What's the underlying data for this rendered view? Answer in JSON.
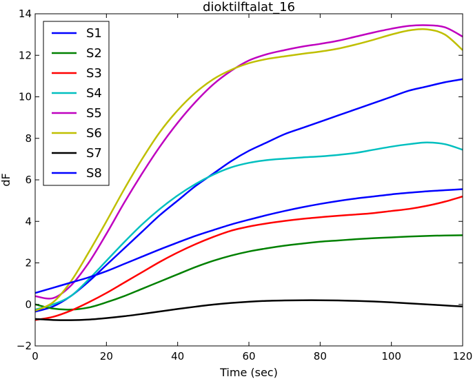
{
  "chart_data": {
    "type": "line",
    "title": "dioktilftalat_16",
    "xlabel": "Time (sec)",
    "ylabel": "dF",
    "xlim": [
      0,
      120
    ],
    "ylim": [
      -2,
      14
    ],
    "xticks": [
      0,
      20,
      40,
      60,
      80,
      100,
      120
    ],
    "xtick_labels": [
      "0",
      "20",
      "40",
      "60",
      "80",
      "100",
      "120"
    ],
    "yticks": [
      -2,
      0,
      2,
      4,
      6,
      8,
      10,
      12,
      14
    ],
    "ytick_labels": [
      "−2",
      "0",
      "2",
      "4",
      "6",
      "8",
      "10",
      "12",
      "14"
    ],
    "grid": false,
    "legend_position": "upper-left",
    "x": [
      0,
      5,
      10,
      15,
      20,
      25,
      30,
      35,
      40,
      45,
      50,
      55,
      60,
      65,
      70,
      75,
      80,
      85,
      90,
      95,
      100,
      105,
      110,
      115,
      120
    ],
    "series": [
      {
        "name": "S1",
        "color": "#0000ff",
        "values": [
          -0.35,
          -0.1,
          0.4,
          1.1,
          1.9,
          2.7,
          3.5,
          4.3,
          5.0,
          5.7,
          6.3,
          6.9,
          7.4,
          7.8,
          8.2,
          8.5,
          8.8,
          9.1,
          9.4,
          9.7,
          10.0,
          10.3,
          10.5,
          10.7,
          10.85
        ]
      },
      {
        "name": "S2",
        "color": "#008000",
        "values": [
          0.0,
          -0.2,
          -0.25,
          -0.15,
          0.1,
          0.4,
          0.75,
          1.1,
          1.45,
          1.8,
          2.1,
          2.35,
          2.55,
          2.7,
          2.83,
          2.93,
          3.02,
          3.08,
          3.14,
          3.19,
          3.23,
          3.27,
          3.3,
          3.32,
          3.33
        ]
      },
      {
        "name": "S3",
        "color": "#ff0000",
        "values": [
          -0.75,
          -0.6,
          -0.3,
          0.1,
          0.55,
          1.05,
          1.55,
          2.05,
          2.5,
          2.9,
          3.25,
          3.55,
          3.75,
          3.9,
          4.02,
          4.12,
          4.2,
          4.27,
          4.33,
          4.4,
          4.5,
          4.6,
          4.75,
          4.95,
          5.2
        ]
      },
      {
        "name": "S4",
        "color": "#00bfbf",
        "values": [
          -0.25,
          0.0,
          0.4,
          1.2,
          2.1,
          3.0,
          3.85,
          4.6,
          5.25,
          5.8,
          6.25,
          6.6,
          6.82,
          6.95,
          7.02,
          7.08,
          7.13,
          7.2,
          7.3,
          7.45,
          7.6,
          7.72,
          7.8,
          7.72,
          7.45
        ]
      },
      {
        "name": "S5",
        "color": "#bf00bf",
        "values": [
          0.4,
          0.3,
          0.9,
          2.0,
          3.4,
          4.9,
          6.3,
          7.6,
          8.75,
          9.75,
          10.6,
          11.25,
          11.75,
          12.05,
          12.25,
          12.42,
          12.55,
          12.7,
          12.9,
          13.1,
          13.28,
          13.42,
          13.45,
          13.35,
          12.9
        ]
      },
      {
        "name": "S6",
        "color": "#bfbf00",
        "values": [
          -0.3,
          0.1,
          1.1,
          2.5,
          4.0,
          5.55,
          7.0,
          8.3,
          9.35,
          10.2,
          10.85,
          11.3,
          11.62,
          11.82,
          11.95,
          12.07,
          12.18,
          12.32,
          12.52,
          12.75,
          13.0,
          13.2,
          13.25,
          13.0,
          12.25
        ]
      },
      {
        "name": "S7",
        "color": "#000000",
        "values": [
          -0.7,
          -0.75,
          -0.76,
          -0.73,
          -0.66,
          -0.57,
          -0.46,
          -0.34,
          -0.22,
          -0.11,
          -0.01,
          0.07,
          0.13,
          0.17,
          0.19,
          0.2,
          0.2,
          0.19,
          0.17,
          0.14,
          0.1,
          0.05,
          0.0,
          -0.05,
          -0.1
        ]
      },
      {
        "name": "S8",
        "color": "#0000ff",
        "values": [
          0.55,
          0.8,
          1.05,
          1.3,
          1.6,
          1.95,
          2.3,
          2.65,
          2.98,
          3.3,
          3.58,
          3.85,
          4.08,
          4.3,
          4.5,
          4.68,
          4.84,
          4.98,
          5.1,
          5.2,
          5.3,
          5.38,
          5.45,
          5.5,
          5.55
        ]
      }
    ]
  }
}
